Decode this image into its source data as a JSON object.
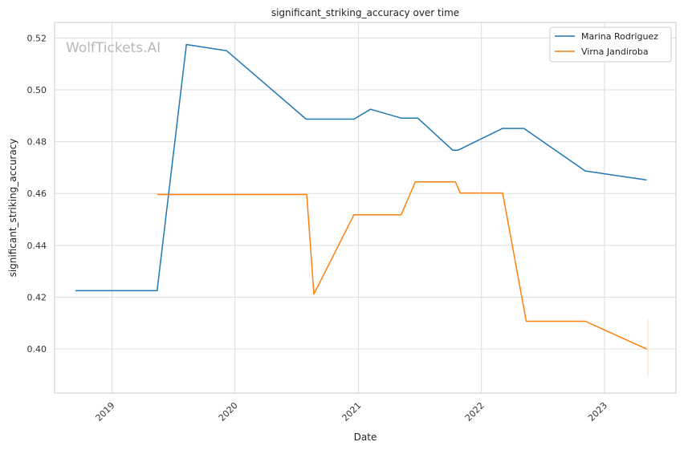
{
  "chart_data": {
    "type": "line",
    "title": "significant_striking_accuracy over time",
    "xlabel": "Date",
    "ylabel": "significant_striking_accuracy",
    "watermark": "WolfTickets.AI",
    "grid": true,
    "legend_position": "top-right",
    "x_ticks": [
      "2019",
      "2020",
      "2021",
      "2022",
      "2023"
    ],
    "y_ticks": [
      "0.40",
      "0.42",
      "0.44",
      "0.46",
      "0.48",
      "0.50",
      "0.52"
    ],
    "xlim": [
      "2018-07-15",
      "2023-08-01"
    ],
    "ylim": [
      0.383,
      0.526
    ],
    "series": [
      {
        "name": "Marina Rodriguez",
        "color": "#1f77b4",
        "points": [
          {
            "x": "2018-09-15",
            "y": 0.4225
          },
          {
            "x": "2019-05-15",
            "y": 0.4225
          },
          {
            "x": "2019-08-10",
            "y": 0.5175
          },
          {
            "x": "2019-12-07",
            "y": 0.5151
          },
          {
            "x": "2020-07-30",
            "y": 0.4887
          },
          {
            "x": "2020-12-19",
            "y": 0.4887
          },
          {
            "x": "2021-02-06",
            "y": 0.4925
          },
          {
            "x": "2021-05-08",
            "y": 0.4891
          },
          {
            "x": "2021-06-26",
            "y": 0.4891
          },
          {
            "x": "2021-10-08",
            "y": 0.4767
          },
          {
            "x": "2021-10-23",
            "y": 0.4767
          },
          {
            "x": "2022-03-05",
            "y": 0.4851
          },
          {
            "x": "2022-05-07",
            "y": 0.4851
          },
          {
            "x": "2022-11-05",
            "y": 0.4687
          },
          {
            "x": "2023-05-06",
            "y": 0.4652
          }
        ]
      },
      {
        "name": "Virna Jandiroba",
        "color": "#ff7f0e",
        "points": [
          {
            "x": "2019-05-15",
            "y": 0.4596
          },
          {
            "x": "2020-08-01",
            "y": 0.4596
          },
          {
            "x": "2020-08-22",
            "y": 0.4212
          },
          {
            "x": "2020-12-19",
            "y": 0.4518
          },
          {
            "x": "2021-05-08",
            "y": 0.4518
          },
          {
            "x": "2021-06-19",
            "y": 0.4645
          },
          {
            "x": "2021-10-16",
            "y": 0.4645
          },
          {
            "x": "2021-10-30",
            "y": 0.4602
          },
          {
            "x": "2022-03-05",
            "y": 0.4602
          },
          {
            "x": "2022-05-14",
            "y": 0.4107
          },
          {
            "x": "2022-11-05",
            "y": 0.4107
          },
          {
            "x": "2023-05-06",
            "y": 0.4
          }
        ]
      }
    ]
  }
}
